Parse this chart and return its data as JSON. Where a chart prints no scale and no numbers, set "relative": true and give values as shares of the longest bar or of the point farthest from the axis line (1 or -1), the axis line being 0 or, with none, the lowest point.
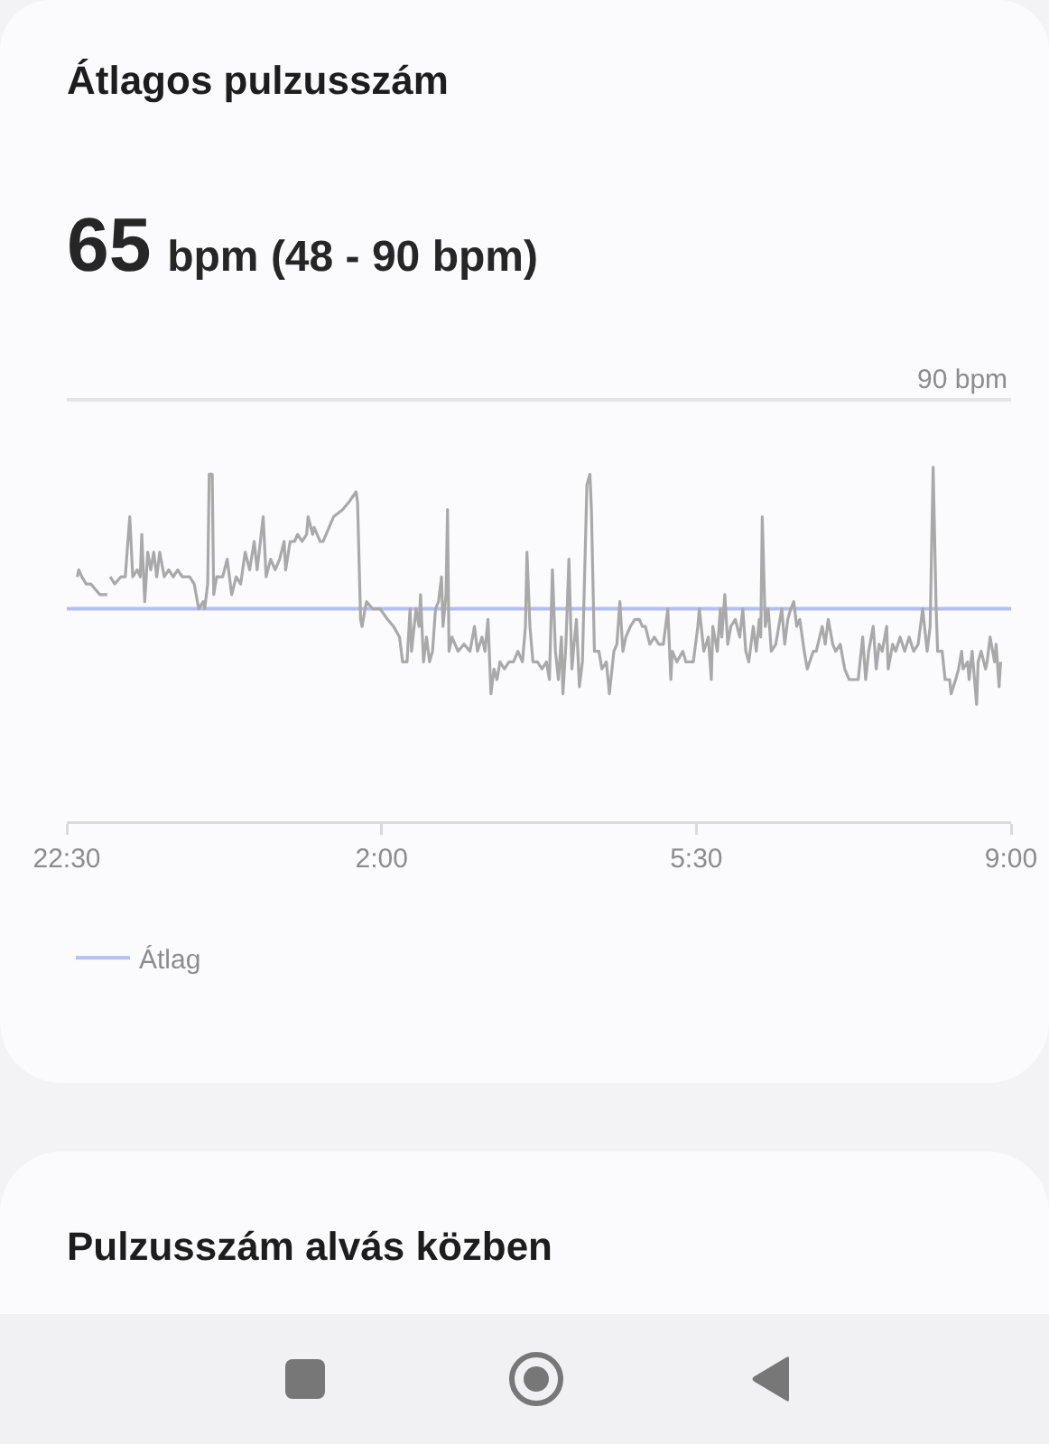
{
  "chart_data": {
    "type": "line",
    "title": "Átlagos pulzusszám",
    "subtitle": "65 bpm (48 - 90 bpm)",
    "relative": true,
    "x": [
      "--01-01T22:37",
      "--01-01T22:38",
      "--01-01T22:40",
      "--01-01T22:43",
      "--01-01T22:46",
      "--01-01T22:52",
      "--01-01T22:57",
      "--01-01T22:58",
      "--01-01T22:59",
      "--01-01T23:02",
      "--01-01T23:06",
      "--01-01T23:09",
      "--01-01T23:12",
      "--01-01T23:14",
      "--01-01T23:17",
      "--01-01T23:19",
      "--01-01T23:20",
      "--01-01T23:22",
      "--01-01T23:24",
      "--01-01T23:26",
      "--01-01T23:28",
      "--01-01T23:30",
      "--01-01T23:32",
      "--01-01T23:35",
      "--01-01T23:38",
      "--01-01T23:41",
      "--01-01T23:44",
      "--01-01T23:47",
      "--01-01T23:52",
      "--01-01T23:55",
      "--01-01T23:58",
      "--01-02T00:01",
      "--01-02T00:02",
      "--01-02T00:04",
      "--01-02T00:05",
      "--01-02T00:07",
      "--01-02T00:08",
      "--01-02T00:10",
      "--01-02T00:14",
      "--01-02T00:17",
      "--01-02T00:20",
      "--01-02T00:23",
      "--01-02T00:26",
      "--01-02T00:29",
      "--01-02T00:32",
      "--01-02T00:35",
      "--01-02T00:37",
      "--01-02T00:41",
      "--01-02T00:43",
      "--01-02T00:46",
      "--01-02T00:49",
      "--01-02T00:52",
      "--01-02T00:55",
      "--01-02T00:56",
      "--01-02T00:59",
      "--01-02T01:02",
      "--01-02T01:04",
      "--01-02T01:07",
      "--01-02T01:10",
      "--01-02T01:11",
      "--01-02T01:14",
      "--01-02T01:15",
      "--01-02T01:19",
      "--01-02T01:21",
      "--01-02T01:23",
      "--01-02T01:28",
      "--01-02T01:34",
      "--01-02T01:38",
      "--01-02T01:43",
      "--01-02T01:44",
      "--01-02T01:46",
      "--01-02T01:47",
      "--01-02T01:49",
      "--01-02T01:50",
      "--01-02T01:54",
      "--01-02T01:59",
      "--01-02T02:04",
      "--01-02T02:08",
      "--01-02T02:12",
      "--01-02T02:14",
      "--01-02T02:17",
      "--01-02T02:19",
      "--01-02T02:20",
      "--01-02T02:23",
      "--01-02T02:25",
      "--01-02T02:26",
      "--01-02T02:28",
      "--01-02T02:30",
      "--01-02T02:32",
      "--01-02T02:34",
      "--01-02T02:36",
      "--01-02T02:38",
      "--01-02T02:40",
      "--01-02T02:41",
      "--01-02T02:43",
      "--01-02T02:44",
      "--01-02T02:45",
      "--01-02T02:47",
      "--01-02T02:51",
      "--01-02T02:55",
      "--01-02T02:59",
      "--01-02T03:02",
      "--01-02T03:04",
      "--01-02T03:07",
      "--01-02T03:09",
      "--01-02T03:11",
      "--01-02T03:13",
      "--01-02T03:15",
      "--01-02T03:17",
      "--01-02T03:19",
      "--01-02T03:22",
      "--01-02T03:25",
      "--01-02T03:28",
      "--01-02T03:31",
      "--01-02T03:34",
      "--01-02T03:36",
      "--01-02T03:37",
      "--01-02T03:39",
      "--01-02T03:41",
      "--01-02T03:44",
      "--01-02T03:47",
      "--01-02T03:50",
      "--01-02T03:52",
      "--01-02T03:54",
      "--01-02T03:56",
      "--01-02T03:58",
      "--01-02T04:00",
      "--01-02T04:01",
      "--01-02T04:03",
      "--01-02T04:05",
      "--01-02T04:07",
      "--01-02T04:08",
      "--01-02T04:10",
      "--01-02T04:12",
      "--01-02T04:14",
      "--01-02T04:17",
      "--01-02T04:19",
      "--01-02T04:20",
      "--01-02T04:22",
      "--01-02T04:25",
      "--01-02T04:27",
      "--01-02T04:30",
      "--01-02T04:32",
      "--01-02T04:35",
      "--01-02T04:37",
      "--01-02T04:39",
      "--01-02T04:41",
      "--01-02T04:43",
      "--01-02T04:46",
      "--01-02T04:49",
      "--01-02T04:52",
      "--01-02T04:54",
      "--01-02T04:56",
      "--01-02T04:59",
      "--01-02T05:02",
      "--01-02T05:05",
      "--01-02T05:08",
      "--01-02T05:11",
      "--01-02T05:13",
      "--01-02T05:14",
      "--01-02T05:17",
      "--01-02T05:21",
      "--01-02T05:23",
      "--01-02T05:28",
      "--01-02T05:31",
      "--01-02T05:32",
      "--01-02T05:35",
      "--01-02T05:38",
      "--01-02T05:40",
      "--01-02T05:41",
      "--01-02T05:44",
      "--01-02T05:46",
      "--01-02T05:47",
      "--01-02T05:49",
      "--01-02T05:51",
      "--01-02T05:53",
      "--01-02T05:56",
      "--01-02T05:59",
      "--01-02T06:01",
      "--01-02T06:03",
      "--01-02T06:05",
      "--01-02T06:08",
      "--01-02T06:10",
      "--01-02T06:12",
      "--01-02T06:13",
      "--01-02T06:14",
      "--01-02T06:16",
      "--01-02T06:18",
      "--01-02T06:20",
      "--01-02T06:23",
      "--01-02T06:25",
      "--01-02T06:27",
      "--01-02T06:29",
      "--01-02T06:31",
      "--01-02T06:33",
      "--01-02T06:35",
      "--01-02T06:37",
      "--01-02T06:39",
      "--01-02T06:42",
      "--01-02T06:44",
      "--01-02T06:48",
      "--01-02T06:50",
      "--01-02T06:54",
      "--01-02T06:56",
      "--01-02T06:58",
      "--01-02T07:01",
      "--01-02T07:03",
      "--01-02T07:06",
      "--01-02T07:09",
      "--01-02T07:12",
      "--01-02T07:15",
      "--01-02T07:18",
      "--01-02T07:21",
      "--01-02T07:23",
      "--01-02T07:25",
      "--01-02T07:28",
      "--01-02T07:30",
      "--01-02T07:32",
      "--01-02T07:34",
      "--01-02T07:37",
      "--01-02T07:38",
      "--01-02T07:41",
      "--01-02T07:43",
      "--01-02T07:46",
      "--01-02T07:49",
      "--01-02T07:52",
      "--01-02T07:55",
      "--01-02T07:58",
      "--01-02T08:01",
      "--01-02T08:04",
      "--01-02T08:06",
      "--01-02T08:08",
      "--01-02T08:10",
      "--01-02T08:11",
      "--01-02T08:14",
      "--01-02T08:16",
      "--01-02T08:19",
      "--01-02T08:20",
      "--01-02T08:23",
      "--01-02T08:25",
      "--01-02T08:27",
      "--01-02T08:28",
      "--01-02T08:31",
      "--01-02T08:32",
      "--01-02T08:34",
      "--01-02T08:37",
      "--01-02T08:38",
      "--01-02T08:40",
      "--01-02T08:43",
      "--01-02T08:44",
      "--01-02T08:46",
      "--01-02T08:49",
      "--01-02T08:50",
      "--01-02T08:52",
      "--01-02T08:53"
    ],
    "series": [
      {
        "color": "#a9a9a9",
        "values": [
          0.69,
          0.71,
          0.69,
          0.67,
          0.67,
          0.64,
          0.64,
          null,
          0.69,
          0.67,
          0.69,
          0.69,
          0.86,
          0.69,
          0.71,
          0.69,
          0.81,
          0.62,
          0.76,
          0.71,
          0.76,
          0.69,
          0.76,
          0.69,
          0.71,
          0.69,
          0.71,
          0.69,
          0.69,
          0.67,
          0.6,
          0.62,
          0.6,
          0.67,
          0.98,
          0.98,
          0.64,
          0.69,
          0.69,
          0.74,
          0.64,
          0.69,
          0.67,
          0.76,
          0.71,
          0.79,
          0.71,
          0.86,
          0.69,
          0.74,
          0.71,
          0.74,
          0.79,
          0.71,
          0.79,
          0.79,
          0.81,
          0.79,
          0.81,
          0.86,
          0.81,
          0.83,
          0.79,
          0.79,
          0.81,
          0.86,
          0.88,
          0.9,
          0.93,
          0.9,
          0.57,
          0.55,
          0.6,
          0.62,
          0.6,
          0.6,
          0.57,
          0.55,
          0.52,
          0.45,
          0.45,
          0.6,
          0.48,
          0.6,
          0.55,
          0.64,
          0.45,
          0.52,
          0.45,
          0.48,
          0.6,
          0.62,
          0.69,
          0.55,
          0.64,
          0.88,
          0.48,
          0.52,
          0.48,
          0.5,
          0.48,
          0.55,
          0.48,
          0.52,
          0.48,
          0.57,
          0.36,
          0.43,
          0.4,
          0.45,
          0.43,
          0.45,
          0.45,
          0.48,
          0.45,
          0.55,
          0.76,
          0.55,
          0.45,
          0.45,
          0.43,
          0.45,
          0.4,
          0.71,
          0.48,
          0.4,
          0.52,
          0.36,
          0.5,
          0.74,
          0.43,
          0.48,
          0.57,
          0.38,
          0.45,
          0.95,
          0.98,
          0.88,
          0.48,
          0.48,
          0.43,
          0.45,
          0.36,
          0.48,
          0.5,
          0.62,
          0.48,
          0.52,
          0.55,
          0.57,
          0.57,
          0.55,
          0.55,
          0.5,
          0.52,
          0.5,
          0.5,
          0.6,
          0.4,
          0.48,
          0.45,
          0.48,
          0.45,
          0.45,
          0.55,
          0.6,
          0.48,
          0.52,
          0.4,
          0.55,
          0.48,
          0.6,
          0.52,
          0.64,
          0.5,
          0.55,
          0.57,
          0.52,
          0.6,
          0.48,
          0.45,
          0.55,
          0.48,
          0.57,
          0.52,
          0.86,
          0.55,
          0.6,
          0.48,
          0.5,
          0.55,
          0.6,
          0.5,
          0.57,
          0.6,
          0.62,
          0.55,
          0.57,
          0.48,
          0.43,
          0.48,
          0.48,
          0.55,
          0.5,
          0.57,
          0.5,
          0.48,
          0.5,
          0.43,
          0.4,
          0.4,
          0.4,
          0.52,
          0.4,
          0.48,
          0.55,
          0.43,
          0.5,
          0.48,
          0.55,
          0.43,
          0.5,
          0.48,
          0.52,
          0.48,
          0.52,
          0.48,
          0.5,
          0.6,
          0.48,
          0.55,
          1,
          0.6,
          0.48,
          0.48,
          0.4,
          0.4,
          0.36,
          0.4,
          0.43,
          0.48,
          0.43,
          0.45,
          0.4,
          0.48,
          0.33,
          0.45,
          0.48,
          0.43,
          0.45,
          0.52,
          0.45,
          0.5,
          0.38,
          0.45
        ]
      }
    ],
    "xlim": [
      "--01-01T22:30",
      "--01-02T09:00"
    ],
    "xticks": [
      {
        "value": "--01-01T22:30",
        "label": "22:30"
      },
      {
        "value": "--01-02T02:00",
        "label": "2:00"
      },
      {
        "value": "--01-02T05:30",
        "label": "5:30"
      },
      {
        "value": "--01-02T09:00",
        "label": "9:00"
      }
    ],
    "ref_lines": [
      {
        "axis": "y",
        "value": 1.19,
        "color": "#e4e4e6"
      },
      {
        "axis": "y",
        "value": 0.6,
        "label": "Átlag",
        "color": "#b3bff0"
      }
    ],
    "legend": "bottom left",
    "annotations": [
      {
        "text": "90 bpm",
        "y": 1.19
      },
      "Pulzusszám alvás közben"
    ]
  }
}
